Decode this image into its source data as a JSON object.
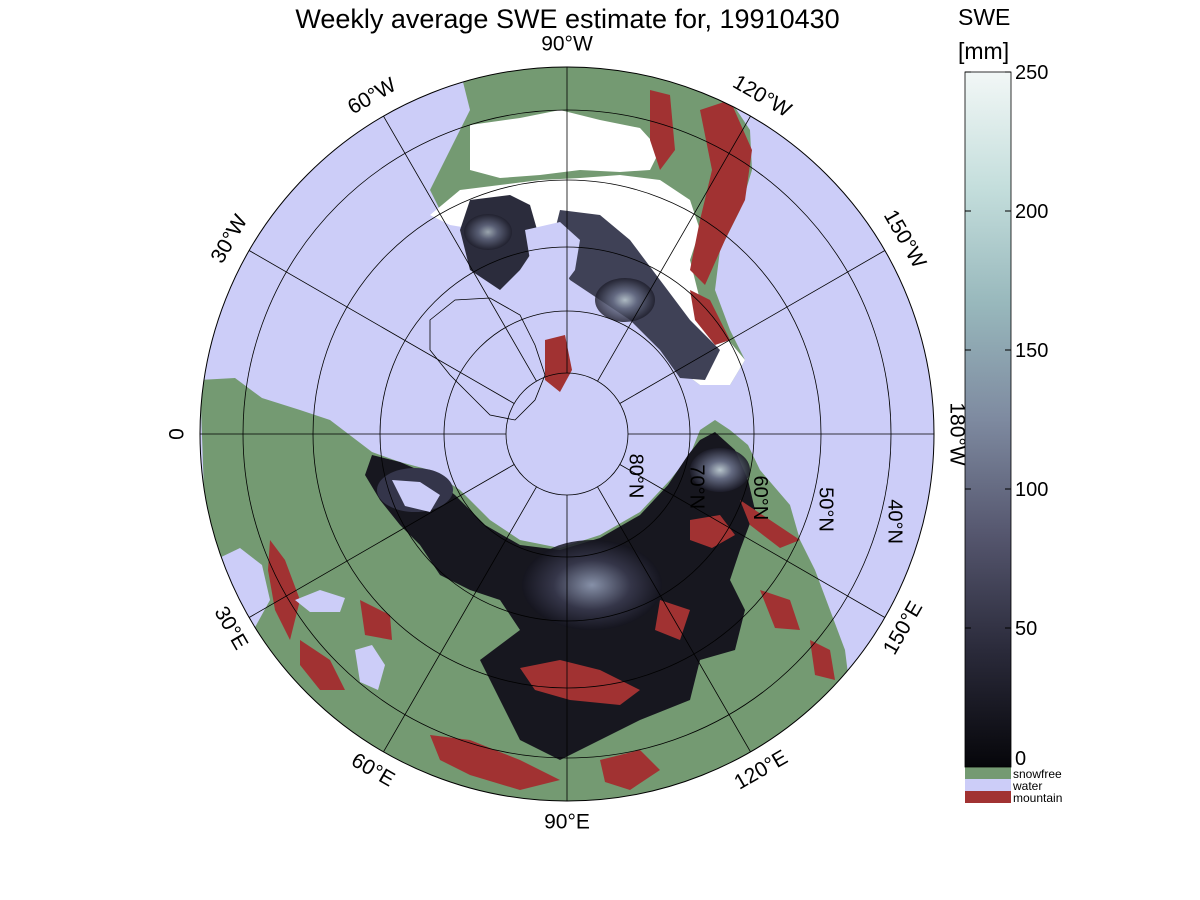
{
  "title": "Weekly average SWE estimate for, 19910430",
  "colorbar": {
    "title_line1": "SWE",
    "title_line2": "[mm]",
    "ticks": [
      0,
      50,
      100,
      150,
      200,
      250
    ],
    "max": 250,
    "gradient_colors": [
      "#06060a",
      "#2a2a3a",
      "#55566e",
      "#7e8aa0",
      "#98b8bc",
      "#c4dedc",
      "#f2f7f6"
    ],
    "categories": [
      {
        "label": "snowfree",
        "color": "#749a72"
      },
      {
        "label": "water",
        "color": "#cccdf8"
      },
      {
        "label": "mountain",
        "color": "#a13232"
      }
    ]
  },
  "map": {
    "projection": "north polar stereographic",
    "ocean_color": "#cccdf8",
    "land_color": "#749a72",
    "mountain_color": "#a13232",
    "snow_light_color": "#ffffff",
    "longitude_labels": [
      {
        "text": "90°W",
        "lon": -90
      },
      {
        "text": "60°W",
        "lon": -60
      },
      {
        "text": "30°W",
        "lon": -30
      },
      {
        "text": "0",
        "lon": 0
      },
      {
        "text": "30°E",
        "lon": 30
      },
      {
        "text": "60°E",
        "lon": 60
      },
      {
        "text": "90°E",
        "lon": 90
      },
      {
        "text": "120°E",
        "lon": 120
      },
      {
        "text": "150°E",
        "lon": 150
      },
      {
        "text": "180°W",
        "lon": 180
      },
      {
        "text": "150°W",
        "lon": -150
      },
      {
        "text": "120°W",
        "lon": -120
      }
    ],
    "latitude_labels": [
      "80°N",
      "70°N",
      "60°N",
      "50°N",
      "40°N"
    ],
    "latitude_circles": [
      80,
      70,
      60,
      50,
      40
    ]
  }
}
